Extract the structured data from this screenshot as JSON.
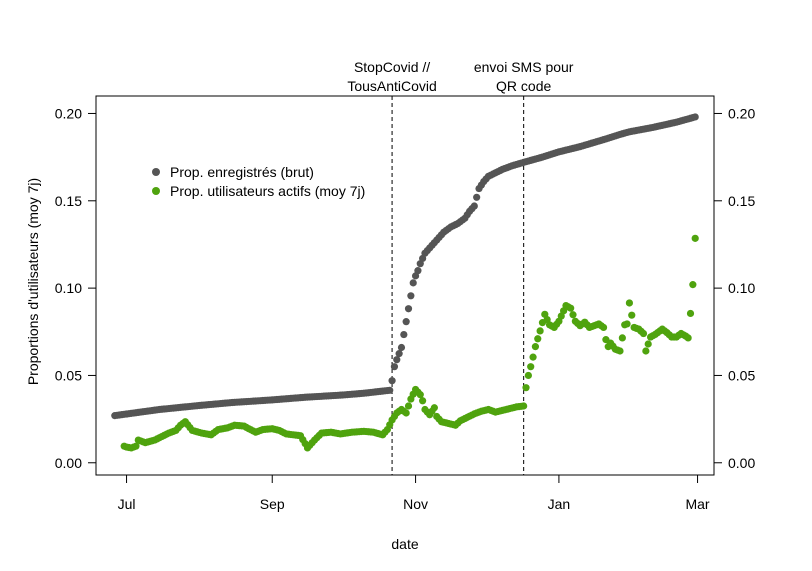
{
  "chart_data": {
    "type": "scatter",
    "xlabel": "date",
    "ylabel": "Proportions d'utilisateurs (moy 7j)",
    "xlim": [
      "2020-06-18",
      "2021-03-08"
    ],
    "ylim": [
      -0.007,
      0.21
    ],
    "x_ticks": [
      {
        "date": "2020-07-01",
        "label": "Jul"
      },
      {
        "date": "2020-09-01",
        "label": "Sep"
      },
      {
        "date": "2020-11-01",
        "label": "Nov"
      },
      {
        "date": "2021-01-01",
        "label": "Jan"
      },
      {
        "date": "2021-03-01",
        "label": "Mar"
      }
    ],
    "y_ticks": [
      {
        "value": 0.0,
        "label": "0.00"
      },
      {
        "value": 0.05,
        "label": "0.05"
      },
      {
        "value": 0.1,
        "label": "0.10"
      },
      {
        "value": 0.15,
        "label": "0.15"
      },
      {
        "value": 0.2,
        "label": "0.20"
      }
    ],
    "grid": false,
    "legend_position": "top-left",
    "legend": [
      {
        "label": "Prop. enregistrés (brut)",
        "color": "#555555"
      },
      {
        "label": "Prop. utilisateurs actifs (moy 7j)",
        "color": "#4fa30e"
      }
    ],
    "annotations": [
      {
        "date": "2020-10-22",
        "lines": [
          "StopCovid //",
          "TousAntiCovid"
        ]
      },
      {
        "date": "2020-12-17",
        "lines": [
          "envoi SMS pour",
          "QR code"
        ]
      }
    ],
    "series": [
      {
        "color": "#555555",
        "points": [
          [
            "2020-06-26",
            0.027
          ],
          [
            "2020-07-15",
            0.0305
          ],
          [
            "2020-08-01",
            0.0328
          ],
          [
            "2020-08-15",
            0.0345
          ],
          [
            "2020-09-01",
            0.036
          ],
          [
            "2020-09-15",
            0.0375
          ],
          [
            "2020-10-01",
            0.0388
          ],
          [
            "2020-10-10",
            0.0398
          ],
          [
            "2020-10-21",
            0.0415
          ],
          [
            "2020-10-22",
            0.047
          ],
          [
            "2020-10-23",
            0.055
          ],
          [
            "2020-10-24",
            0.059
          ],
          [
            "2020-10-26",
            0.066
          ],
          [
            "2020-10-31",
            0.103
          ],
          [
            "2020-11-01",
            0.107
          ],
          [
            "2020-11-02",
            0.11
          ],
          [
            "2020-11-03",
            0.114
          ],
          [
            "2020-11-04",
            0.117
          ],
          [
            "2020-11-05",
            0.12
          ],
          [
            "2020-11-07",
            0.123
          ],
          [
            "2020-11-09",
            0.126
          ],
          [
            "2020-11-11",
            0.129
          ],
          [
            "2020-11-13",
            0.132
          ],
          [
            "2020-11-16",
            0.135
          ],
          [
            "2020-11-19",
            0.137
          ],
          [
            "2020-11-22",
            0.14
          ],
          [
            "2020-11-24",
            0.144
          ],
          [
            "2020-11-26",
            0.147
          ],
          [
            "2020-11-27",
            0.152
          ],
          [
            "2020-11-28",
            0.157
          ],
          [
            "2020-11-30",
            0.161
          ],
          [
            "2020-12-02",
            0.164
          ],
          [
            "2020-12-05",
            0.166
          ],
          [
            "2020-12-08",
            0.168
          ],
          [
            "2020-12-12",
            0.17
          ],
          [
            "2020-12-17",
            0.172
          ],
          [
            "2020-12-25",
            0.175
          ],
          [
            "2021-01-01",
            0.178
          ],
          [
            "2021-01-10",
            0.181
          ],
          [
            "2021-01-20",
            0.185
          ],
          [
            "2021-01-27",
            0.188
          ],
          [
            "2021-01-31",
            0.1895
          ],
          [
            "2021-02-10",
            0.192
          ],
          [
            "2021-02-20",
            0.195
          ],
          [
            "2021-02-28",
            0.198
          ]
        ]
      },
      {
        "color": "#4fa30e",
        "points": [
          [
            "2020-06-30",
            0.0095
          ],
          [
            "2020-07-01",
            0.009
          ],
          [
            "2020-07-03",
            0.0085
          ],
          [
            "2020-07-05",
            0.0095
          ],
          [
            "2020-07-06",
            0.013
          ],
          [
            "2020-07-09",
            0.0115
          ],
          [
            "2020-07-13",
            0.013
          ],
          [
            "2020-07-16",
            0.015
          ],
          [
            "2020-07-19",
            0.017
          ],
          [
            "2020-07-22",
            0.0185
          ],
          [
            "2020-07-24",
            0.0215
          ],
          [
            "2020-07-26",
            0.0235
          ],
          [
            "2020-07-29",
            0.0185
          ],
          [
            "2020-08-02",
            0.017
          ],
          [
            "2020-08-06",
            0.016
          ],
          [
            "2020-08-09",
            0.019
          ],
          [
            "2020-08-13",
            0.02
          ],
          [
            "2020-08-16",
            0.0215
          ],
          [
            "2020-08-20",
            0.021
          ],
          [
            "2020-08-22",
            0.0195
          ],
          [
            "2020-08-25",
            0.0175
          ],
          [
            "2020-08-28",
            0.019
          ],
          [
            "2020-09-01",
            0.0195
          ],
          [
            "2020-09-04",
            0.0185
          ],
          [
            "2020-09-07",
            0.0165
          ],
          [
            "2020-09-10",
            0.016
          ],
          [
            "2020-09-13",
            0.0155
          ],
          [
            "2020-09-15",
            0.011
          ],
          [
            "2020-09-16",
            0.0085
          ],
          [
            "2020-09-19",
            0.013
          ],
          [
            "2020-09-22",
            0.017
          ],
          [
            "2020-09-26",
            0.0175
          ],
          [
            "2020-09-30",
            0.0165
          ],
          [
            "2020-10-05",
            0.0175
          ],
          [
            "2020-10-10",
            0.018
          ],
          [
            "2020-10-14",
            0.0175
          ],
          [
            "2020-10-18",
            0.016
          ],
          [
            "2020-10-20",
            0.019
          ],
          [
            "2020-10-22",
            0.0245
          ],
          [
            "2020-10-24",
            0.0285
          ],
          [
            "2020-10-26",
            0.0305
          ],
          [
            "2020-10-28",
            0.0285
          ],
          [
            "2020-10-30",
            0.0365
          ],
          [
            "2020-11-01",
            0.042
          ],
          [
            "2020-11-03",
            0.039
          ],
          [
            "2020-11-04",
            0.0355
          ],
          [
            "2020-11-05",
            0.0305
          ],
          [
            "2020-11-07",
            0.0275
          ],
          [
            "2020-11-09",
            0.0315
          ],
          [
            "2020-11-10",
            0.0265
          ],
          [
            "2020-11-12",
            0.0235
          ],
          [
            "2020-11-15",
            0.0225
          ],
          [
            "2020-11-18",
            0.0215
          ],
          [
            "2020-11-20",
            0.024
          ],
          [
            "2020-11-23",
            0.026
          ],
          [
            "2020-11-26",
            0.028
          ],
          [
            "2020-11-29",
            0.0295
          ],
          [
            "2020-12-02",
            0.0305
          ],
          [
            "2020-12-05",
            0.029
          ],
          [
            "2020-12-08",
            0.03
          ],
          [
            "2020-12-11",
            0.031
          ],
          [
            "2020-12-14",
            0.032
          ],
          [
            "2020-12-17",
            0.0325
          ],
          [
            "2020-12-18",
            0.043
          ],
          [
            "2020-12-19",
            0.05
          ],
          [
            "2020-12-20",
            0.055
          ],
          [
            "2020-12-21",
            0.0605
          ],
          [
            "2020-12-22",
            0.0665
          ],
          [
            "2020-12-24",
            0.0755
          ],
          [
            "2020-12-26",
            0.085
          ],
          [
            "2020-12-28",
            0.079
          ],
          [
            "2020-12-30",
            0.0775
          ],
          [
            "2021-01-01",
            0.081
          ],
          [
            "2021-01-04",
            0.09
          ],
          [
            "2021-01-06",
            0.0885
          ],
          [
            "2021-01-08",
            0.081
          ],
          [
            "2021-01-10",
            0.0785
          ],
          [
            "2021-01-12",
            0.0805
          ],
          [
            "2021-01-14",
            0.0775
          ],
          [
            "2021-01-16",
            0.0785
          ],
          [
            "2021-01-18",
            0.0795
          ],
          [
            "2021-01-20",
            0.0775
          ],
          [
            "2021-01-21",
            0.0705
          ],
          [
            "2021-01-22",
            0.0665
          ],
          [
            "2021-01-23",
            0.0685
          ],
          [
            "2021-01-25",
            0.065
          ],
          [
            "2021-01-27",
            0.064
          ],
          [
            "2021-01-29",
            0.079
          ],
          [
            "2021-01-30",
            0.0795
          ],
          [
            "2021-01-31",
            0.0915
          ],
          [
            "2021-02-02",
            0.0775
          ],
          [
            "2021-02-04",
            0.0765
          ],
          [
            "2021-02-06",
            0.074
          ],
          [
            "2021-02-07",
            0.064
          ],
          [
            "2021-02-09",
            0.072
          ],
          [
            "2021-02-11",
            0.0735
          ],
          [
            "2021-02-14",
            0.0765
          ],
          [
            "2021-02-16",
            0.0745
          ],
          [
            "2021-02-18",
            0.072
          ],
          [
            "2021-02-20",
            0.072
          ],
          [
            "2021-02-22",
            0.074
          ],
          [
            "2021-02-24",
            0.0725
          ],
          [
            "2021-02-25",
            0.0715
          ],
          [
            "2021-02-26",
            0.0855
          ],
          [
            "2021-02-27",
            0.102
          ],
          [
            "2021-02-28",
            0.1285
          ]
        ]
      }
    ]
  }
}
